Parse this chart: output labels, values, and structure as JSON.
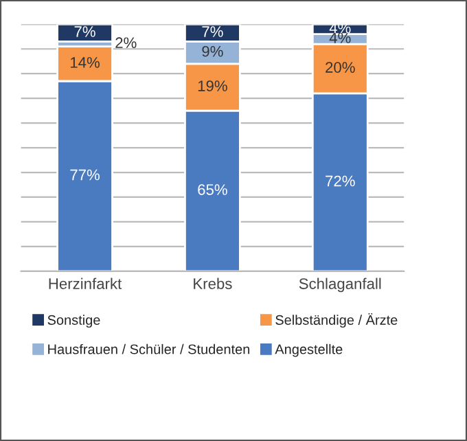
{
  "chart_data": {
    "type": "bar",
    "stacked": true,
    "categories": [
      "Herzinfarkt",
      "Krebs",
      "Schlaganfall"
    ],
    "series": [
      {
        "name": "Angestellte",
        "color": "#4a7bc0",
        "values": [
          77,
          65,
          72
        ],
        "value_labels": [
          "77%",
          "65%",
          "72%"
        ]
      },
      {
        "name": "Selbständige / Ärzte",
        "color": "#f79646",
        "values": [
          14,
          19,
          20
        ],
        "value_labels": [
          "14%",
          "19%",
          "20%"
        ]
      },
      {
        "name": "Hausfrauen / Schüler / Studenten",
        "color": "#95b3d7",
        "values": [
          2,
          9,
          4
        ],
        "value_labels": [
          "2%",
          "9%",
          "4%"
        ]
      },
      {
        "name": "Sonstige",
        "color": "#1f3864",
        "values": [
          7,
          7,
          4
        ],
        "value_labels": [
          "7%",
          "7%",
          "4%"
        ]
      }
    ],
    "tick_labels": "x",
    "grid": "y",
    "legend": "bottom"
  }
}
